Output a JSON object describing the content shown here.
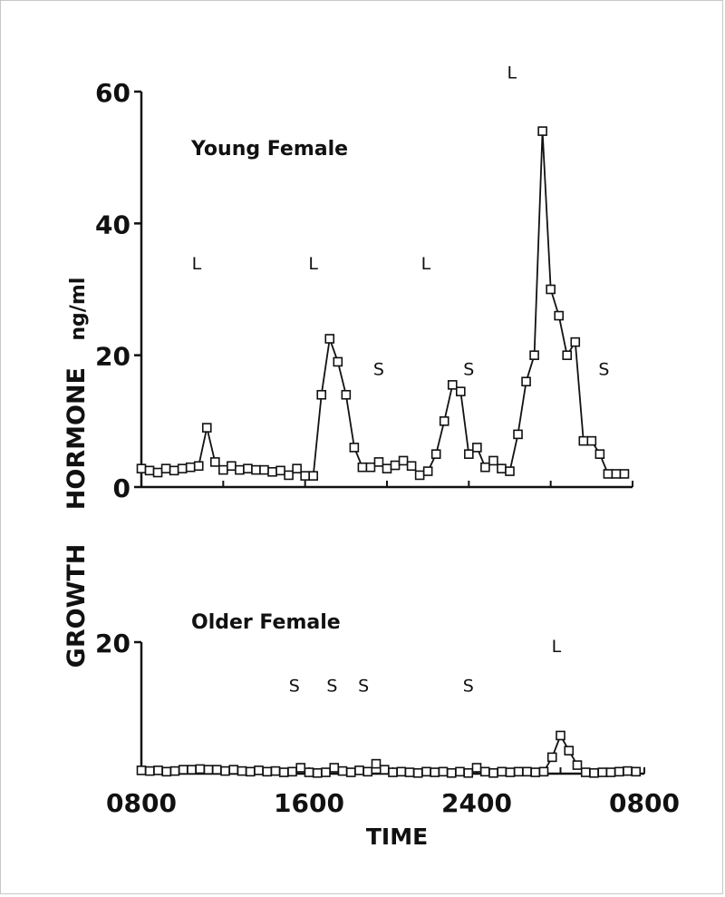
{
  "chart_data": [
    {
      "type": "line",
      "title": "Young Female",
      "ylabel": "GROWTH HORMONE ng/ml",
      "ylabel_parts": [
        "GROWTH",
        "HORMONE",
        "ng/ml"
      ],
      "ylim": [
        0,
        60
      ],
      "yticks": [
        "0",
        "20",
        "40",
        "60"
      ],
      "ytick_values": [
        0,
        20,
        40,
        60
      ],
      "xlim": [
        0,
        24
      ],
      "series": [
        {
          "x": [
            0,
            0.4,
            0.8,
            1.2,
            1.6,
            2.0,
            2.4,
            2.8,
            3.2,
            3.6,
            4.0,
            4.4,
            4.8,
            5.2,
            5.6,
            6.0,
            6.4,
            6.8,
            7.2,
            7.6,
            8.0,
            8.4,
            8.8,
            9.2,
            9.6,
            10.0,
            10.4,
            10.8,
            11.2,
            11.6,
            12.0,
            12.4,
            12.8,
            13.2,
            13.6,
            14.0,
            14.4,
            14.8,
            15.2,
            15.6,
            16.0,
            16.4,
            16.8,
            17.2,
            17.6,
            18.0,
            18.4,
            18.8,
            19.2,
            19.6,
            20.0,
            20.4,
            20.8,
            21.2,
            21.6,
            22.0,
            22.4,
            22.8,
            23.2,
            23.6
          ],
          "y": [
            2.8,
            2.5,
            2.2,
            2.8,
            2.5,
            2.8,
            3.0,
            3.2,
            9.0,
            3.8,
            2.6,
            3.2,
            2.6,
            2.8,
            2.6,
            2.6,
            2.3,
            2.5,
            1.8,
            2.8,
            1.7,
            1.7,
            14.0,
            22.5,
            19.0,
            14.0,
            6.0,
            3.0,
            3.0,
            3.8,
            2.8,
            3.3,
            4.0,
            3.2,
            1.8,
            2.4,
            5.0,
            10.0,
            15.5,
            14.5,
            5.0,
            6.0,
            3.0,
            4.0,
            2.8,
            2.4,
            8.0,
            16.0,
            20.0,
            54.0,
            30.0,
            26.0,
            20.0,
            22.0,
            7.0,
            7.0,
            5.0,
            2.0,
            2.0,
            2.0
          ]
        }
      ],
      "annotations": [
        {
          "text": "L",
          "x": 2.7,
          "y": 33
        },
        {
          "text": "L",
          "x": 8.4,
          "y": 33
        },
        {
          "text": "S",
          "x": 11.6,
          "y": 17
        },
        {
          "text": "L",
          "x": 13.9,
          "y": 33
        },
        {
          "text": "S",
          "x": 16.0,
          "y": 17
        },
        {
          "text": "L",
          "x": 18.1,
          "y": 62
        },
        {
          "text": "S",
          "x": 22.6,
          "y": 17
        }
      ]
    },
    {
      "type": "line",
      "title": "Older Female",
      "ylim": [
        0,
        20
      ],
      "yticks": [
        "20"
      ],
      "ytick_values": [
        20
      ],
      "xlabel": "TIME",
      "xlim": [
        0,
        24
      ],
      "xticks": [
        "0800",
        "1600",
        "2400",
        "0800"
      ],
      "xtick_values": [
        0,
        8,
        16,
        24
      ],
      "series": [
        {
          "x": [
            0,
            0.4,
            0.8,
            1.2,
            1.6,
            2.0,
            2.4,
            2.8,
            3.2,
            3.6,
            4.0,
            4.4,
            4.8,
            5.2,
            5.6,
            6.0,
            6.4,
            6.8,
            7.2,
            7.6,
            8.0,
            8.4,
            8.8,
            9.2,
            9.6,
            10.0,
            10.4,
            10.8,
            11.2,
            11.6,
            12.0,
            12.4,
            12.8,
            13.2,
            13.6,
            14.0,
            14.4,
            14.8,
            15.2,
            15.6,
            16.0,
            16.4,
            16.8,
            17.2,
            17.6,
            18.0,
            18.4,
            18.8,
            19.2,
            19.6,
            20.0,
            20.4,
            20.8,
            21.2,
            21.6,
            22.0,
            22.4,
            22.8,
            23.2,
            23.6
          ],
          "y": [
            0.5,
            0.4,
            0.5,
            0.3,
            0.4,
            0.6,
            0.6,
            0.7,
            0.6,
            0.6,
            0.4,
            0.6,
            0.4,
            0.3,
            0.5,
            0.3,
            0.4,
            0.2,
            0.3,
            0.9,
            0.2,
            0.1,
            0.2,
            0.9,
            0.4,
            0.2,
            0.5,
            0.3,
            1.5,
            0.6,
            0.2,
            0.3,
            0.2,
            0.1,
            0.3,
            0.2,
            0.3,
            0.1,
            0.3,
            0.1,
            0.9,
            0.3,
            0.1,
            0.3,
            0.2,
            0.3,
            0.3,
            0.2,
            0.3,
            2.5,
            5.8,
            3.5,
            1.3,
            0.2,
            0.1,
            0.2,
            0.2,
            0.3,
            0.4,
            0.3
          ]
        }
      ],
      "annotations": [
        {
          "text": "S",
          "x": 7.3,
          "y": 12.5
        },
        {
          "text": "S",
          "x": 9.1,
          "y": 12.5
        },
        {
          "text": "S",
          "x": 10.6,
          "y": 12.5
        },
        {
          "text": "S",
          "x": 15.6,
          "y": 12.5
        },
        {
          "text": "L",
          "x": 19.8,
          "y": 18.5
        }
      ]
    }
  ]
}
